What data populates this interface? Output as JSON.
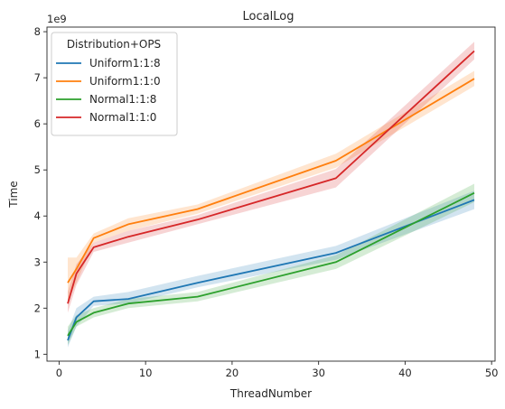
{
  "chart_data": {
    "type": "line",
    "title": "LocalLog",
    "xlabel": "ThreadNumber",
    "ylabel": "Time",
    "y_offset_label": "1e9",
    "xlim": [
      -1.4,
      50.4
    ],
    "ylim": [
      0.85,
      8.1
    ],
    "xticks": [
      0,
      10,
      20,
      30,
      40,
      50
    ],
    "yticks": [
      1,
      2,
      3,
      4,
      5,
      6,
      7,
      8
    ],
    "grid": false,
    "legend_title": "Distribution+OPS",
    "legend_position": "upper-left",
    "x": [
      1,
      2,
      4,
      8,
      16,
      32,
      48
    ],
    "series": [
      {
        "name": "Uniform1:1:8",
        "color": "#1f77b4",
        "values": [
          1.3,
          1.8,
          2.15,
          2.2,
          2.55,
          3.2,
          4.35
        ],
        "lower": [
          1.15,
          1.6,
          2.05,
          2.1,
          2.45,
          3.05,
          4.15
        ],
        "upper": [
          1.5,
          2.0,
          2.25,
          2.35,
          2.7,
          3.35,
          4.55
        ]
      },
      {
        "name": "Uniform1:1:0",
        "color": "#ff7f0e",
        "values": [
          2.55,
          2.85,
          3.52,
          3.82,
          4.15,
          5.2,
          6.98
        ],
        "lower": [
          2.15,
          2.55,
          3.42,
          3.68,
          4.05,
          5.05,
          6.82
        ],
        "upper": [
          3.1,
          3.1,
          3.62,
          3.95,
          4.25,
          5.35,
          7.15
        ]
      },
      {
        "name": "Normal1:1:8",
        "color": "#2ca02c",
        "values": [
          1.4,
          1.7,
          1.9,
          2.1,
          2.25,
          3.0,
          4.5
        ],
        "lower": [
          1.2,
          1.6,
          1.8,
          2.0,
          2.15,
          2.85,
          4.3
        ],
        "upper": [
          1.6,
          1.85,
          2.0,
          2.2,
          2.35,
          3.15,
          4.7
        ]
      },
      {
        "name": "Normal1:1:0",
        "color": "#d62728",
        "values": [
          2.1,
          2.75,
          3.32,
          3.55,
          3.92,
          4.82,
          7.58
        ],
        "lower": [
          1.9,
          2.5,
          3.22,
          3.42,
          3.82,
          4.62,
          7.4
        ],
        "upper": [
          2.35,
          2.95,
          3.42,
          3.68,
          4.02,
          5.02,
          7.78
        ]
      }
    ]
  }
}
